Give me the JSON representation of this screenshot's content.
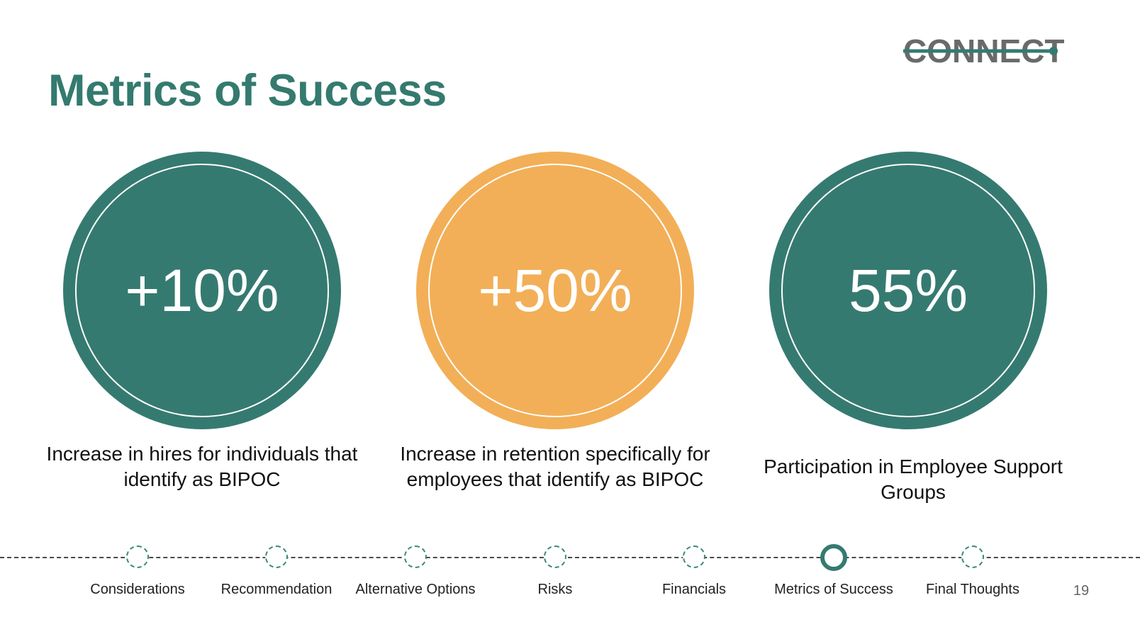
{
  "brand": {
    "logo_text": "CONNECT",
    "colors": {
      "primary": "#357a70",
      "accent": "#f2af58",
      "logo_gray": "#6a6a6a"
    }
  },
  "slide": {
    "title": "Metrics of Success",
    "page_number": "19"
  },
  "metrics": [
    {
      "value": "+10%",
      "caption": "Increase in hires for individuals that identify as BIPOC",
      "color": "#357a70"
    },
    {
      "value": "+50%",
      "caption": "Increase in retention specifically for employees that identify as BIPOC",
      "color": "#f2af58"
    },
    {
      "value": "55%",
      "caption": "Participation in Employee Support Groups",
      "color": "#357a70"
    }
  ],
  "nav": {
    "active": "Metrics of Success",
    "items": [
      {
        "label": "Considerations"
      },
      {
        "label": "Recommendation"
      },
      {
        "label": "Alternative Options"
      },
      {
        "label": "Risks"
      },
      {
        "label": "Financials"
      },
      {
        "label": "Metrics of Success"
      },
      {
        "label": "Final Thoughts"
      }
    ]
  }
}
